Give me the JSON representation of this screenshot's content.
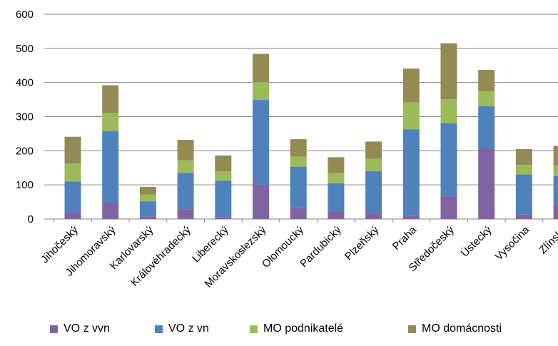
{
  "chart_data": {
    "type": "bar",
    "stacked": true,
    "categories": [
      "Jihočeský",
      "Jihomoravský",
      "Karlovarský",
      "Královéhradecký",
      "Liberecký",
      "Moravskoslezský",
      "Olomoucký",
      "Pardubický",
      "Plzeňský",
      "Praha",
      "Středočeský",
      "Ústecký",
      "Vysočina",
      "Zlínský"
    ],
    "series": [
      {
        "name": "VO z vvn",
        "color": "#8064a2",
        "values": [
          18,
          47,
          8,
          29,
          6,
          101,
          32,
          22,
          17,
          10,
          66,
          207,
          13,
          41
        ]
      },
      {
        "name": "VO z vn",
        "color": "#4f81bd",
        "values": [
          92,
          211,
          44,
          106,
          106,
          248,
          122,
          83,
          123,
          253,
          215,
          124,
          118,
          85
        ]
      },
      {
        "name": "MO podnikatelé",
        "color": "#9bbb59",
        "values": [
          53,
          52,
          20,
          37,
          28,
          52,
          29,
          30,
          36,
          79,
          70,
          43,
          28,
          31
        ]
      },
      {
        "name": "MO domácnosti",
        "color": "#948a54",
        "values": [
          78,
          82,
          22,
          60,
          46,
          83,
          51,
          46,
          51,
          99,
          164,
          63,
          46,
          57
        ]
      }
    ],
    "yticks": [
      0,
      100,
      200,
      300,
      400,
      500,
      600
    ],
    "ylim": [
      0,
      600
    ],
    "grid": true,
    "legend": "bottom"
  }
}
